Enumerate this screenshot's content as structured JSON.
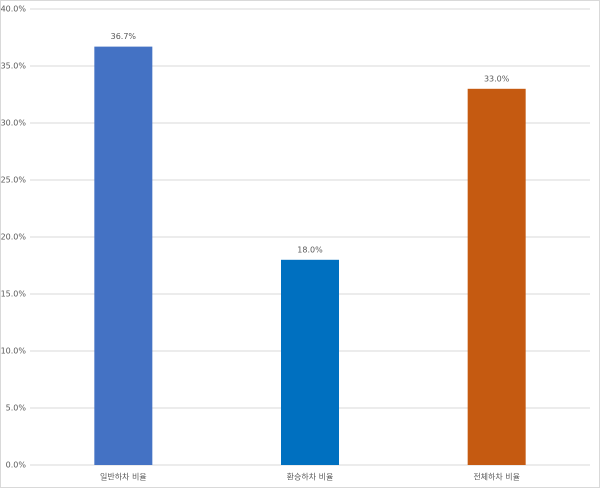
{
  "chart_data": {
    "type": "bar",
    "categories": [
      "일반하차 비율",
      "환승하차 비율",
      "전체하차 비율"
    ],
    "values": [
      36.7,
      18.0,
      33.0
    ],
    "value_labels": [
      "36.7%",
      "18.0%",
      "33.0%"
    ],
    "colors": [
      "#4472c4",
      "#0070c0",
      "#c55a11"
    ],
    "ylim": [
      0,
      40
    ],
    "yticks": [
      {
        "value": 0,
        "label": "0.0%"
      },
      {
        "value": 5,
        "label": "5.0%"
      },
      {
        "value": 10,
        "label": "10.0%"
      },
      {
        "value": 15,
        "label": "15.0%"
      },
      {
        "value": 20,
        "label": "20.0%"
      },
      {
        "value": 25,
        "label": "25.0%"
      },
      {
        "value": 30,
        "label": "30.0%"
      },
      {
        "value": 35,
        "label": "35.0%"
      },
      {
        "value": 40,
        "label": "40.0%"
      }
    ],
    "grid": true
  }
}
